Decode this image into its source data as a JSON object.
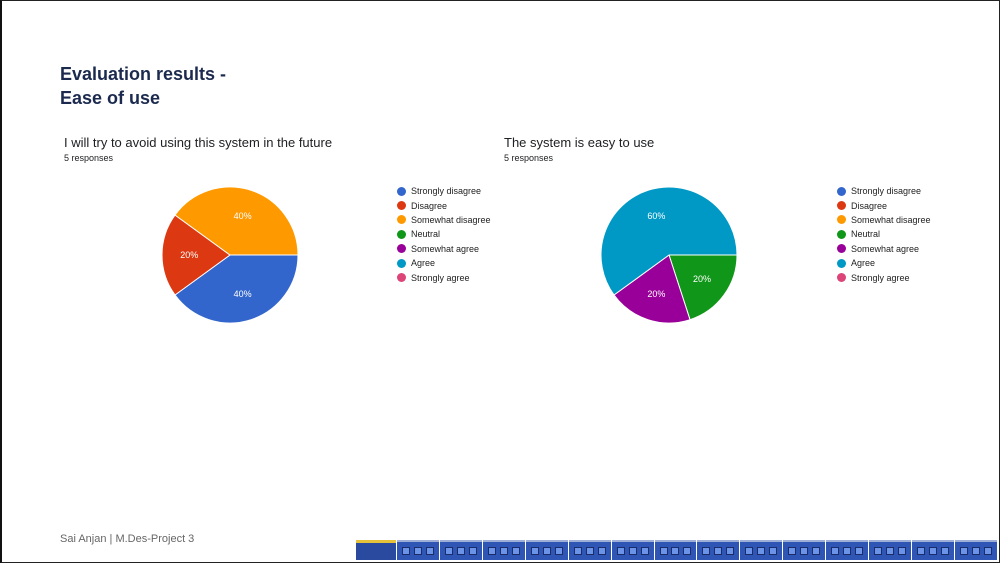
{
  "slide": {
    "title_line1": "Evaluation results -",
    "title_line2": "Ease of use",
    "footer": "Sai Anjan | M.Des-Project 3"
  },
  "legend_items": [
    "Strongly disagree",
    "Disagree",
    "Somewhat disagree",
    "Neutral",
    "Somewhat agree",
    "Agree",
    "Strongly agree"
  ],
  "colors": [
    "#3366cc",
    "#dc3912",
    "#ff9900",
    "#109618",
    "#990099",
    "#0099c6",
    "#dd4477"
  ],
  "chart_data": [
    {
      "type": "pie",
      "title": "I will try to avoid using this system in the future",
      "subtitle": "5 responses",
      "categories": [
        "Strongly disagree",
        "Disagree",
        "Somewhat disagree",
        "Neutral",
        "Somewhat agree",
        "Agree",
        "Strongly agree"
      ],
      "values": [
        40,
        20,
        40,
        0,
        0,
        0,
        0
      ],
      "legend": "right"
    },
    {
      "type": "pie",
      "title": "The system is easy to use",
      "subtitle": "5 responses",
      "categories": [
        "Strongly disagree",
        "Disagree",
        "Somewhat disagree",
        "Neutral",
        "Somewhat agree",
        "Agree",
        "Strongly agree"
      ],
      "values": [
        0,
        0,
        0,
        20,
        20,
        60,
        0
      ],
      "legend": "right"
    }
  ]
}
